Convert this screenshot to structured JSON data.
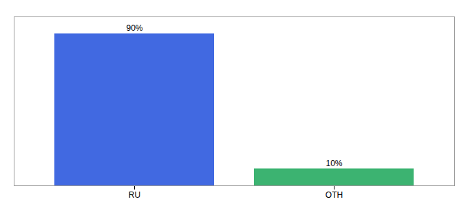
{
  "chart_data": {
    "type": "bar",
    "categories": [
      "RU",
      "OTH"
    ],
    "values": [
      90,
      10
    ],
    "colors": [
      "#4169E1",
      "#3CB371"
    ],
    "ylim": [
      0,
      100
    ],
    "data_labels": true,
    "value_labels": [
      "90%",
      "10%"
    ],
    "tick_labels": "x"
  }
}
